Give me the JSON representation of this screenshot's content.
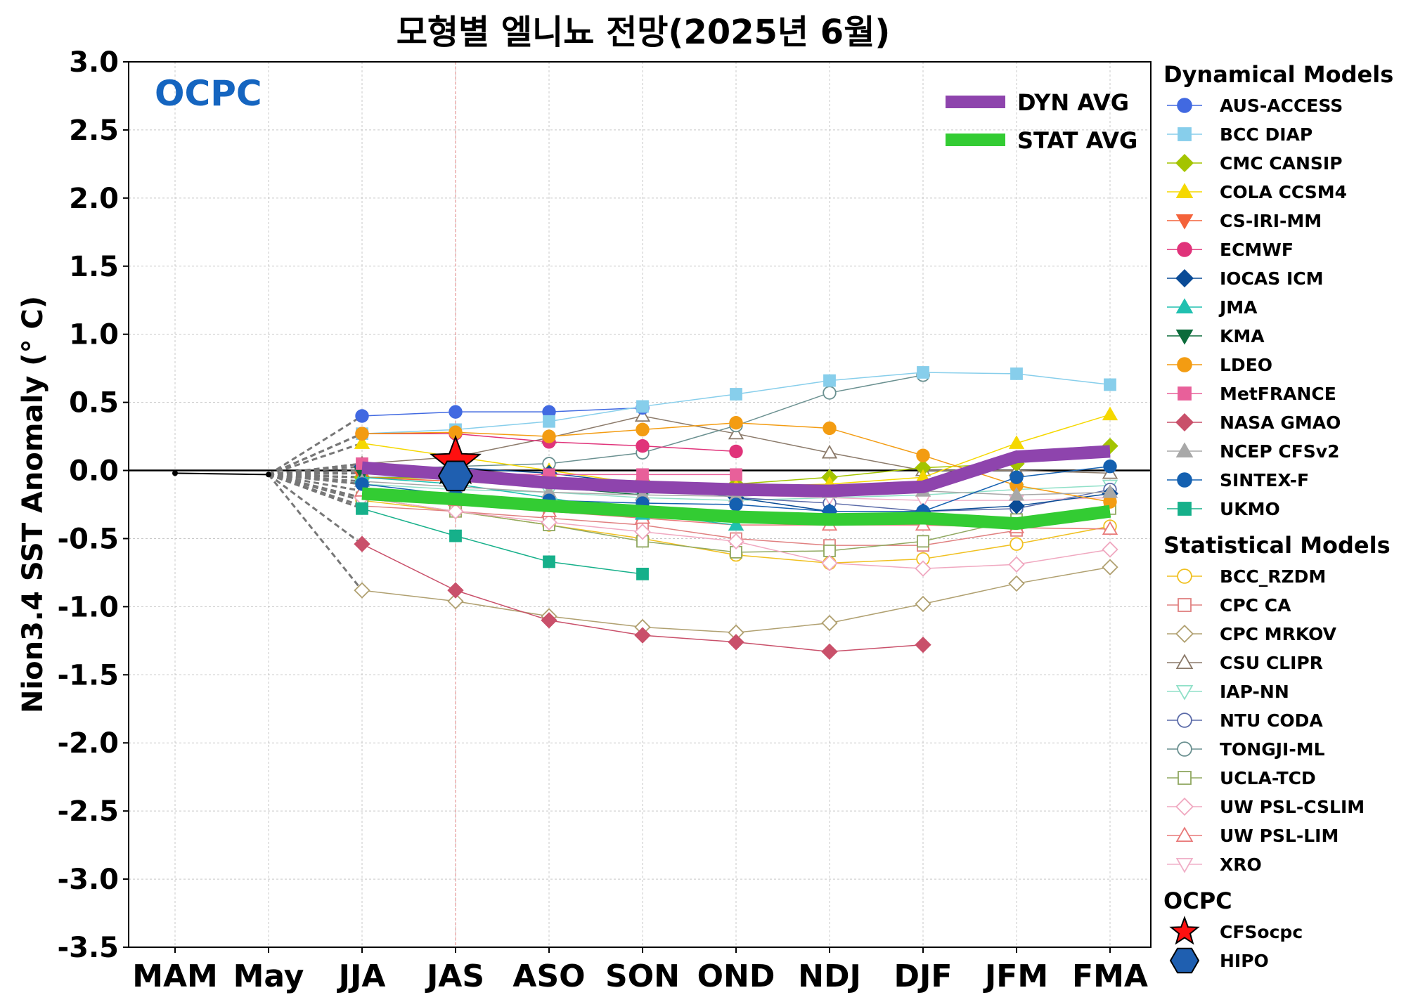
{
  "chart_data": {
    "type": "line",
    "title": "모형별 엘니뇨 전망(2025년 6월)",
    "ylabel": "Nion3.4 SST Anomaly (° C)",
    "xlabel": "",
    "ylim": [
      -3.5,
      3.0
    ],
    "yticks": [
      "3.0",
      "2.5",
      "2.0",
      "1.5",
      "1.0",
      "0.5",
      "0.0",
      "-0.5",
      "-1.0",
      "-1.5",
      "-2.0",
      "-2.5",
      "-3.0",
      "-3.5"
    ],
    "categories": [
      "MAM",
      "May",
      "JJA",
      "JAS",
      "ASO",
      "SON",
      "OND",
      "NDJ",
      "DJF",
      "JFM",
      "FMA"
    ],
    "grid": true,
    "logo_text": "OCPC",
    "legend_headers": {
      "dynamical": "Dynamical Models",
      "statistical": "Statistical Models",
      "ocpc": "OCPC"
    },
    "observed": {
      "values": [
        -0.02,
        -0.03,
        null,
        null,
        null,
        null,
        null,
        null,
        null,
        null,
        null
      ],
      "color": "#000000"
    },
    "averages": [
      {
        "name": "DYN AVG",
        "color": "#8e44ad",
        "values": [
          null,
          null,
          0.02,
          -0.03,
          -0.09,
          -0.12,
          -0.14,
          -0.15,
          -0.12,
          0.1,
          0.14
        ]
      },
      {
        "name": "STAT AVG",
        "color": "#33cc33",
        "values": [
          null,
          null,
          -0.17,
          -0.21,
          -0.26,
          -0.3,
          -0.34,
          -0.36,
          -0.35,
          -0.39,
          -0.3
        ]
      }
    ],
    "dynamical": [
      {
        "name": "AUS-ACCESS",
        "color": "#4169e1",
        "marker": "circle",
        "fill": true,
        "values": [
          null,
          null,
          0.4,
          0.43,
          0.43,
          0.46,
          null,
          null,
          null,
          null,
          null
        ]
      },
      {
        "name": "BCC DIAP",
        "color": "#87ceeb",
        "marker": "square",
        "fill": true,
        "values": [
          null,
          null,
          0.27,
          0.3,
          0.36,
          0.47,
          0.56,
          0.66,
          0.72,
          0.71,
          0.63
        ]
      },
      {
        "name": "CMC CANSIP",
        "color": "#a4c400",
        "marker": "diamond",
        "fill": true,
        "values": [
          null,
          null,
          -0.05,
          -0.06,
          -0.05,
          -0.08,
          -0.1,
          -0.05,
          0.02,
          0.05,
          0.18
        ]
      },
      {
        "name": "COLA CCSM4",
        "color": "#f5d800",
        "marker": "triangle-up",
        "fill": true,
        "values": [
          null,
          null,
          0.2,
          0.1,
          0.0,
          -0.1,
          -0.12,
          -0.1,
          -0.05,
          0.2,
          0.41
        ]
      },
      {
        "name": "CS-IRI-MM",
        "color": "#f4623a",
        "marker": "triangle-down",
        "fill": true,
        "values": [
          null,
          null,
          -0.05,
          -0.08,
          -0.1,
          null,
          null,
          null,
          null,
          null,
          null
        ]
      },
      {
        "name": "ECMWF",
        "color": "#e0337a",
        "marker": "circle",
        "fill": true,
        "values": [
          null,
          null,
          0.27,
          0.27,
          0.21,
          0.18,
          0.14,
          null,
          null,
          null,
          null
        ]
      },
      {
        "name": "IOCAS ICM",
        "color": "#0a4b96",
        "marker": "diamond",
        "fill": true,
        "values": [
          null,
          null,
          0.03,
          0.02,
          -0.02,
          -0.1,
          -0.2,
          -0.3,
          -0.3,
          -0.26,
          -0.17
        ]
      },
      {
        "name": "JMA",
        "color": "#20c0b0",
        "marker": "triangle-up",
        "fill": true,
        "values": [
          null,
          null,
          -0.05,
          -0.1,
          -0.2,
          -0.32,
          -0.4,
          null,
          null,
          null,
          null
        ]
      },
      {
        "name": "KMA",
        "color": "#0b6b3a",
        "marker": "triangle-down",
        "fill": true,
        "values": [
          null,
          null,
          -0.02,
          -0.06,
          -0.12,
          -0.18,
          null,
          null,
          null,
          null,
          null
        ]
      },
      {
        "name": "LDEO",
        "color": "#f39c12",
        "marker": "circle",
        "fill": true,
        "values": [
          null,
          null,
          0.27,
          0.28,
          0.25,
          0.3,
          0.35,
          0.31,
          0.11,
          -0.11,
          -0.23
        ]
      },
      {
        "name": "MetFRANCE",
        "color": "#e8609a",
        "marker": "square",
        "fill": true,
        "values": [
          null,
          null,
          0.05,
          -0.02,
          -0.03,
          -0.03,
          -0.03,
          null,
          null,
          null,
          null
        ]
      },
      {
        "name": "NASA GMAO",
        "color": "#c9506a",
        "marker": "diamond",
        "fill": true,
        "values": [
          null,
          null,
          -0.54,
          -0.88,
          -1.1,
          -1.21,
          -1.26,
          -1.33,
          -1.28,
          null,
          null
        ]
      },
      {
        "name": "NCEP CFSv2",
        "color": "#a8a8a8",
        "marker": "triangle-up",
        "fill": true,
        "values": [
          null,
          null,
          -0.08,
          -0.12,
          -0.16,
          -0.18,
          -0.19,
          -0.16,
          -0.15,
          -0.18,
          -0.16
        ]
      },
      {
        "name": "SINTEX-F",
        "color": "#1460b0",
        "marker": "circle",
        "fill": true,
        "values": [
          null,
          null,
          -0.1,
          -0.18,
          -0.22,
          -0.24,
          -0.25,
          -0.3,
          -0.3,
          -0.05,
          0.03
        ]
      },
      {
        "name": "UKMO",
        "color": "#16b08a",
        "marker": "square",
        "fill": true,
        "values": [
          null,
          null,
          -0.28,
          -0.48,
          -0.67,
          -0.76,
          null,
          null,
          null,
          null,
          null
        ]
      }
    ],
    "statistical": [
      {
        "name": "BCC_RZDM",
        "color": "#f0c020",
        "marker": "circle",
        "fill": false,
        "values": [
          null,
          null,
          -0.22,
          -0.3,
          -0.4,
          -0.5,
          -0.62,
          -0.68,
          -0.65,
          -0.54,
          -0.41
        ]
      },
      {
        "name": "CPC CA",
        "color": "#e08080",
        "marker": "square",
        "fill": false,
        "values": [
          null,
          null,
          -0.26,
          -0.3,
          -0.35,
          -0.4,
          -0.5,
          -0.55,
          -0.55,
          -0.44,
          -0.25
        ]
      },
      {
        "name": "CPC MRKOV",
        "color": "#b0a070",
        "marker": "diamond",
        "fill": false,
        "values": [
          null,
          null,
          -0.88,
          -0.96,
          -1.07,
          -1.15,
          -1.19,
          -1.12,
          -0.98,
          -0.83,
          -0.71
        ]
      },
      {
        "name": "CSU CLIPR",
        "color": "#8b7a6a",
        "marker": "triangle-up",
        "fill": false,
        "values": [
          null,
          null,
          0.05,
          0.1,
          0.24,
          0.4,
          0.27,
          0.13,
          0.0,
          0.0,
          -0.02
        ]
      },
      {
        "name": "IAP-NN",
        "color": "#90e0c8",
        "marker": "triangle-down",
        "fill": false,
        "values": [
          null,
          null,
          -0.1,
          -0.14,
          -0.16,
          -0.2,
          -0.22,
          -0.2,
          -0.18,
          -0.14,
          -0.11
        ]
      },
      {
        "name": "NTU CODA",
        "color": "#5a6aa8",
        "marker": "circle",
        "fill": false,
        "values": [
          null,
          null,
          -0.05,
          -0.05,
          -0.05,
          -0.08,
          -0.2,
          -0.24,
          -0.3,
          -0.28,
          -0.14
        ]
      },
      {
        "name": "TONGJI-ML",
        "color": "#6a9090",
        "marker": "circle",
        "fill": false,
        "values": [
          null,
          null,
          0.0,
          0.03,
          0.05,
          0.13,
          0.33,
          0.57,
          0.7,
          null,
          null
        ]
      },
      {
        "name": "UCLA-TCD",
        "color": "#90a860",
        "marker": "square",
        "fill": false,
        "values": [
          null,
          null,
          -0.2,
          -0.3,
          -0.4,
          -0.52,
          -0.6,
          -0.59,
          -0.52,
          -0.36,
          -0.28
        ]
      },
      {
        "name": "UW PSL-CSLIM",
        "color": "#f0a8c0",
        "marker": "diamond",
        "fill": false,
        "values": [
          null,
          null,
          -0.2,
          -0.3,
          -0.38,
          -0.45,
          -0.52,
          -0.68,
          -0.72,
          -0.69,
          -0.58
        ]
      },
      {
        "name": "UW PSL-LIM",
        "color": "#e87878",
        "marker": "triangle-up",
        "fill": false,
        "values": [
          null,
          null,
          -0.15,
          -0.22,
          -0.3,
          -0.35,
          -0.4,
          -0.4,
          -0.4,
          -0.42,
          -0.43
        ]
      },
      {
        "name": "XRO",
        "color": "#f0b0c8",
        "marker": "triangle-down",
        "fill": false,
        "values": [
          null,
          null,
          -0.05,
          -0.08,
          -0.12,
          -0.15,
          -0.18,
          -0.2,
          -0.22,
          -0.22,
          -0.2
        ]
      }
    ],
    "ocpc": [
      {
        "name": "CFSocpc",
        "color": "#ff1010",
        "marker": "star",
        "fill": true,
        "values": [
          null,
          null,
          null,
          0.06,
          null,
          null,
          null,
          null,
          null,
          null,
          null
        ]
      },
      {
        "name": "HIPO",
        "color": "#1f5fb0",
        "marker": "hexagon",
        "fill": true,
        "values": [
          null,
          null,
          null,
          -0.04,
          null,
          null,
          null,
          null,
          null,
          null,
          null
        ]
      }
    ]
  }
}
